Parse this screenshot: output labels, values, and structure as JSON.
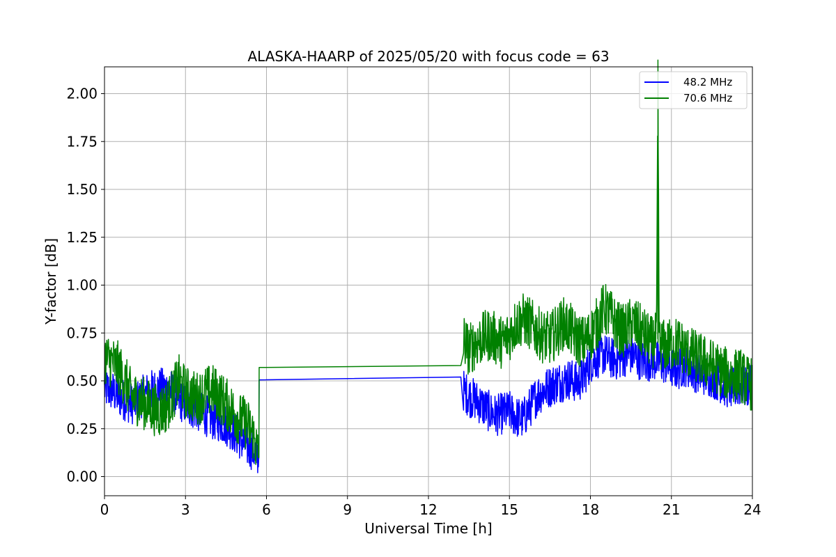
{
  "chart_data": {
    "type": "line",
    "title": "ALASKA-HAARP of 2025/05/20 with focus code = 63",
    "xlabel": "Universal Time [h]",
    "ylabel": "Y-factor [dB]",
    "xlim": [
      0,
      24
    ],
    "ylim": [
      -0.1,
      2.14
    ],
    "xticks": [
      "0",
      "3",
      "6",
      "9",
      "12",
      "15",
      "18",
      "21",
      "24"
    ],
    "yticks": [
      "0.00",
      "0.25",
      "0.50",
      "0.75",
      "1.00",
      "1.25",
      "1.50",
      "1.75",
      "2.00"
    ],
    "grid": true,
    "legend_position": "upper right",
    "series": [
      {
        "name": "48.2 MHz",
        "color": "#0000ff",
        "points": [
          [
            0.0,
            0.46
          ],
          [
            0.25,
            0.45
          ],
          [
            0.5,
            0.42
          ],
          [
            0.75,
            0.4
          ],
          [
            1.0,
            0.38
          ],
          [
            1.25,
            0.4
          ],
          [
            1.5,
            0.43
          ],
          [
            1.75,
            0.45
          ],
          [
            2.0,
            0.46
          ],
          [
            2.25,
            0.46
          ],
          [
            2.5,
            0.45
          ],
          [
            2.75,
            0.4
          ],
          [
            3.0,
            0.38
          ],
          [
            3.25,
            0.36
          ],
          [
            3.5,
            0.34
          ],
          [
            3.75,
            0.32
          ],
          [
            4.0,
            0.3
          ],
          [
            4.25,
            0.29
          ],
          [
            4.5,
            0.27
          ],
          [
            4.75,
            0.24
          ],
          [
            5.0,
            0.2
          ],
          [
            5.25,
            0.16
          ],
          [
            5.5,
            0.14
          ],
          [
            5.72,
            0.1
          ],
          [
            5.73,
            0.505
          ],
          [
            13.2,
            0.52
          ],
          [
            13.3,
            0.45
          ],
          [
            13.5,
            0.42
          ],
          [
            13.75,
            0.4
          ],
          [
            14.0,
            0.37
          ],
          [
            14.25,
            0.34
          ],
          [
            14.5,
            0.32
          ],
          [
            14.75,
            0.33
          ],
          [
            15.0,
            0.34
          ],
          [
            15.25,
            0.31
          ],
          [
            15.5,
            0.3
          ],
          [
            15.75,
            0.36
          ],
          [
            16.0,
            0.42
          ],
          [
            16.25,
            0.45
          ],
          [
            16.5,
            0.47
          ],
          [
            16.75,
            0.49
          ],
          [
            17.0,
            0.5
          ],
          [
            17.25,
            0.51
          ],
          [
            17.5,
            0.49
          ],
          [
            17.75,
            0.52
          ],
          [
            18.0,
            0.6
          ],
          [
            18.25,
            0.62
          ],
          [
            18.5,
            0.64
          ],
          [
            18.75,
            0.62
          ],
          [
            19.0,
            0.61
          ],
          [
            19.25,
            0.63
          ],
          [
            19.5,
            0.64
          ],
          [
            19.75,
            0.62
          ],
          [
            20.0,
            0.6
          ],
          [
            20.25,
            0.61
          ],
          [
            20.5,
            0.6
          ],
          [
            20.75,
            0.59
          ],
          [
            21.0,
            0.57
          ],
          [
            21.25,
            0.56
          ],
          [
            21.5,
            0.58
          ],
          [
            21.75,
            0.56
          ],
          [
            22.0,
            0.54
          ],
          [
            22.25,
            0.53
          ],
          [
            22.5,
            0.52
          ],
          [
            22.75,
            0.5
          ],
          [
            23.0,
            0.47
          ],
          [
            23.25,
            0.46
          ],
          [
            23.5,
            0.47
          ],
          [
            23.75,
            0.47
          ],
          [
            24.0,
            0.47
          ]
        ]
      },
      {
        "name": "70.6 MHz",
        "color": "#008000",
        "points": [
          [
            0.0,
            0.62
          ],
          [
            0.25,
            0.6
          ],
          [
            0.5,
            0.57
          ],
          [
            0.75,
            0.5
          ],
          [
            1.0,
            0.42
          ],
          [
            1.25,
            0.4
          ],
          [
            1.5,
            0.38
          ],
          [
            1.75,
            0.36
          ],
          [
            2.0,
            0.34
          ],
          [
            2.25,
            0.36
          ],
          [
            2.5,
            0.42
          ],
          [
            2.75,
            0.5
          ],
          [
            3.0,
            0.44
          ],
          [
            3.25,
            0.42
          ],
          [
            3.5,
            0.41
          ],
          [
            3.75,
            0.44
          ],
          [
            4.0,
            0.45
          ],
          [
            4.25,
            0.42
          ],
          [
            4.5,
            0.38
          ],
          [
            4.75,
            0.34
          ],
          [
            5.0,
            0.3
          ],
          [
            5.25,
            0.28
          ],
          [
            5.5,
            0.22
          ],
          [
            5.72,
            0.1
          ],
          [
            5.73,
            0.57
          ],
          [
            13.2,
            0.58
          ],
          [
            13.3,
            0.72
          ],
          [
            13.5,
            0.66
          ],
          [
            13.75,
            0.7
          ],
          [
            14.0,
            0.72
          ],
          [
            14.25,
            0.74
          ],
          [
            14.5,
            0.72
          ],
          [
            14.75,
            0.7
          ],
          [
            15.0,
            0.74
          ],
          [
            15.25,
            0.8
          ],
          [
            15.5,
            0.82
          ],
          [
            15.75,
            0.8
          ],
          [
            16.0,
            0.76
          ],
          [
            16.25,
            0.73
          ],
          [
            16.5,
            0.72
          ],
          [
            16.75,
            0.76
          ],
          [
            17.0,
            0.8
          ],
          [
            17.25,
            0.77
          ],
          [
            17.5,
            0.72
          ],
          [
            17.75,
            0.7
          ],
          [
            18.0,
            0.74
          ],
          [
            18.25,
            0.8
          ],
          [
            18.5,
            0.88
          ],
          [
            18.75,
            0.84
          ],
          [
            19.0,
            0.78
          ],
          [
            19.25,
            0.76
          ],
          [
            19.5,
            0.8
          ],
          [
            19.75,
            0.78
          ],
          [
            20.0,
            0.74
          ],
          [
            20.25,
            0.7
          ],
          [
            20.45,
            0.72
          ],
          [
            20.5,
            2.04
          ],
          [
            20.55,
            0.7
          ],
          [
            20.75,
            0.68
          ],
          [
            21.0,
            0.69
          ],
          [
            21.25,
            0.7
          ],
          [
            21.5,
            0.66
          ],
          [
            21.75,
            0.64
          ],
          [
            22.0,
            0.62
          ],
          [
            22.25,
            0.6
          ],
          [
            22.5,
            0.58
          ],
          [
            22.75,
            0.56
          ],
          [
            23.0,
            0.54
          ],
          [
            23.25,
            0.52
          ],
          [
            23.5,
            0.54
          ],
          [
            23.75,
            0.5
          ],
          [
            24.0,
            0.48
          ]
        ]
      }
    ]
  }
}
